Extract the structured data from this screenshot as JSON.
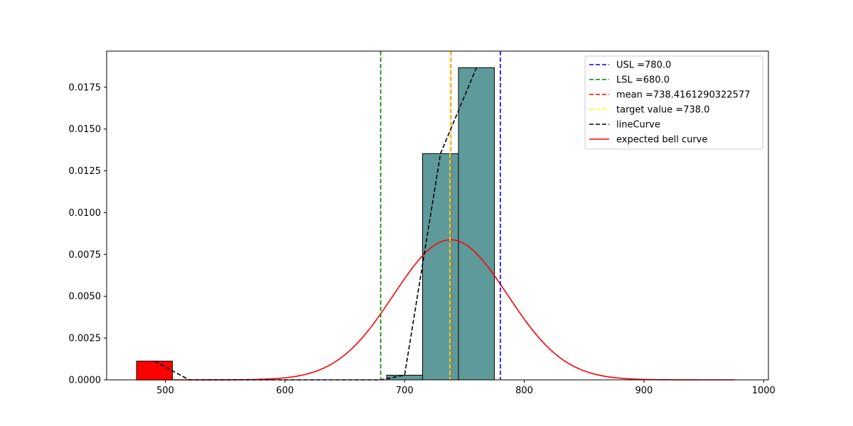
{
  "chart_data": {
    "type": "bar",
    "title": "",
    "xlabel": "",
    "ylabel": "",
    "xlim": [
      451,
      1004
    ],
    "ylim": [
      0,
      0.01966
    ],
    "x_ticks": [
      500,
      600,
      700,
      800,
      900,
      1000
    ],
    "y_ticks": [
      0.0,
      0.0025,
      0.005,
      0.0075,
      0.01,
      0.0125,
      0.015,
      0.0175
    ],
    "y_tick_labels": [
      "0.0000",
      "0.0025",
      "0.0050",
      "0.0075",
      "0.0100",
      "0.0125",
      "0.0150",
      "0.0175"
    ],
    "grid": false,
    "legend_position": "top-right",
    "histogram": [
      {
        "x0": 476,
        "x1": 506,
        "value": 0.00112,
        "color": "#ff0000"
      },
      {
        "x0": 685,
        "x1": 715,
        "value": 0.00028,
        "color": "#5f9a9a"
      },
      {
        "x0": 715,
        "x1": 745,
        "value": 0.01353,
        "color": "#5f9a9a"
      },
      {
        "x0": 745,
        "x1": 775,
        "value": 0.01867,
        "color": "#5f9a9a"
      }
    ],
    "vlines": [
      {
        "name": "USL =780.0",
        "x": 780.0,
        "color": "#0000ff"
      },
      {
        "name": "LSL =680.0",
        "x": 680.0,
        "color": "#008000"
      },
      {
        "name": "mean =738.4161290322577",
        "x": 738.4161290322577,
        "color": "#ff0000"
      },
      {
        "name": "target value =738.0",
        "x": 738.0,
        "color": "#ffff00"
      }
    ],
    "line_curve": {
      "name": "lineCurve",
      "color": "#000000",
      "x": [
        491,
        520,
        680,
        700,
        730,
        760
      ],
      "y": [
        0.00112,
        0.0,
        0.0,
        0.00028,
        0.01353,
        0.01867
      ]
    },
    "bell_curve": {
      "name": "expected bell curve",
      "color": "#ff0000",
      "mean": 738.4161290322577,
      "std": 47.6,
      "x_range": [
        476,
        977
      ]
    }
  }
}
